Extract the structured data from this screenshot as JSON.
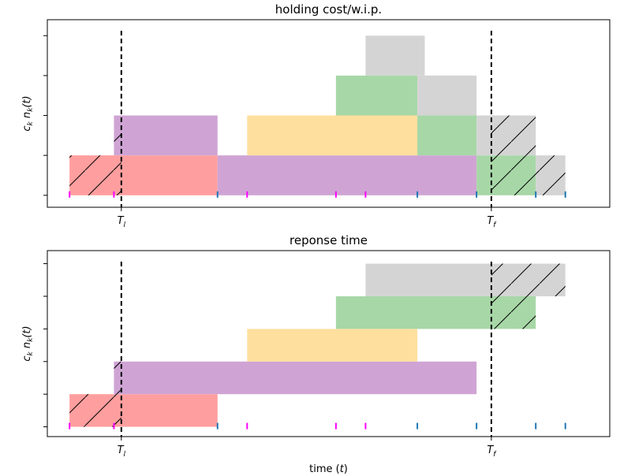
{
  "chart_data": [
    {
      "type": "area",
      "title": "holding cost/w.i.p.",
      "xlabel": "",
      "ylabel": "c_k n_k(t)",
      "ylabel_parts": {
        "main": "c",
        "sub1": "k",
        "mid": " n",
        "sub2": "k",
        "tail": "(t)"
      },
      "xticks": [
        {
          "value": 2.5,
          "label": "T",
          "sub": "l"
        },
        {
          "value": 15.0,
          "label": "T",
          "sub": "f"
        }
      ],
      "xlim": [
        0,
        19
      ],
      "ylim": [
        -0.3,
        4.4
      ],
      "vlines": [
        2.5,
        15.0
      ],
      "yticks_count": 5,
      "hatch_range": [
        [
          1,
          2.5
        ],
        [
          15,
          18.5
        ]
      ],
      "segments": [
        {
          "color": "#ff9e9e",
          "x0": 0.75,
          "x1": 5.75,
          "y0": 0,
          "y1": 1
        },
        {
          "color": "#cfa4d4",
          "x0": 2.25,
          "x1": 5.75,
          "y0": 1,
          "y1": 2
        },
        {
          "color": "#cfa4d4",
          "x0": 5.75,
          "x1": 14.5,
          "y0": 0,
          "y1": 1
        },
        {
          "color": "#ffdf9e",
          "x0": 6.75,
          "x1": 12.5,
          "y0": 1,
          "y1": 2
        },
        {
          "color": "#a7d7a7",
          "x0": 9.75,
          "x1": 12.5,
          "y0": 2,
          "y1": 3
        },
        {
          "color": "#a7d7a7",
          "x0": 12.5,
          "x1": 14.5,
          "y0": 1,
          "y1": 2
        },
        {
          "color": "#a7d7a7",
          "x0": 14.5,
          "x1": 16.5,
          "y0": 0,
          "y1": 1
        },
        {
          "color": "#d4d4d4",
          "x0": 10.75,
          "x1": 12.75,
          "y0": 3,
          "y1": 4
        },
        {
          "color": "#d4d4d4",
          "x0": 12.5,
          "x1": 14.5,
          "y0": 2,
          "y1": 3
        },
        {
          "color": "#d4d4d4",
          "x0": 14.5,
          "x1": 16.5,
          "y0": 1,
          "y1": 2
        },
        {
          "color": "#d4d4d4",
          "x0": 16.5,
          "x1": 17.5,
          "y0": 0,
          "y1": 1
        }
      ],
      "hatched": [
        {
          "x0": 0.75,
          "x1": 2.5,
          "y0": 0,
          "y1": 1
        },
        {
          "x0": 2.25,
          "x1": 2.5,
          "y0": 1,
          "y1": 2
        },
        {
          "x0": 15.0,
          "x1": 17.5,
          "y0": 0,
          "y1": 1
        },
        {
          "x0": 15.0,
          "x1": 16.5,
          "y0": 1,
          "y1": 2
        }
      ],
      "arrivals": [
        0.75,
        2.25,
        6.75,
        9.75,
        10.75
      ],
      "departures": [
        5.75,
        12.5,
        14.5,
        16.5,
        17.5
      ]
    },
    {
      "type": "area",
      "title": "reponse time",
      "xlabel": "time (t)",
      "xlabel_parts": {
        "main": "time (",
        "ital": "t",
        "tail": ")"
      },
      "ylabel": "c_k n_k(t)",
      "ylabel_parts": {
        "main": "c",
        "sub1": "k",
        "mid": " n",
        "sub2": "k",
        "tail": "(t)"
      },
      "xticks": [
        {
          "value": 2.5,
          "label": "T",
          "sub": "l"
        },
        {
          "value": 15.0,
          "label": "T",
          "sub": "f"
        }
      ],
      "xlim": [
        0,
        19
      ],
      "ylim": [
        -0.3,
        5.4
      ],
      "vlines": [
        2.5,
        15.0
      ],
      "yticks_count": 6,
      "segments": [
        {
          "color": "#ff9e9e",
          "x0": 0.75,
          "x1": 5.75,
          "y0": 0,
          "y1": 1
        },
        {
          "color": "#cfa4d4",
          "x0": 2.25,
          "x1": 14.5,
          "y0": 1,
          "y1": 2
        },
        {
          "color": "#ffdf9e",
          "x0": 6.75,
          "x1": 12.5,
          "y0": 2,
          "y1": 3
        },
        {
          "color": "#a7d7a7",
          "x0": 9.75,
          "x1": 16.5,
          "y0": 3,
          "y1": 4
        },
        {
          "color": "#d4d4d4",
          "x0": 10.75,
          "x1": 17.5,
          "y0": 4,
          "y1": 5
        }
      ],
      "hatched": [
        {
          "x0": 0.75,
          "x1": 2.5,
          "y0": 0,
          "y1": 1
        },
        {
          "x0": 2.25,
          "x1": 2.5,
          "y0": 1,
          "y1": 2
        },
        {
          "x0": 15.0,
          "x1": 16.5,
          "y0": 3,
          "y1": 4
        },
        {
          "x0": 15.0,
          "x1": 17.5,
          "y0": 4,
          "y1": 5
        }
      ],
      "arrivals": [
        0.75,
        2.25,
        6.75,
        9.75,
        10.75
      ],
      "departures": [
        5.75,
        12.5,
        14.5,
        16.5,
        17.5
      ]
    }
  ],
  "colors": {
    "arrival_tick": "#ff00ff",
    "departure_tick": "#1f77b4",
    "vline": "#000000"
  }
}
